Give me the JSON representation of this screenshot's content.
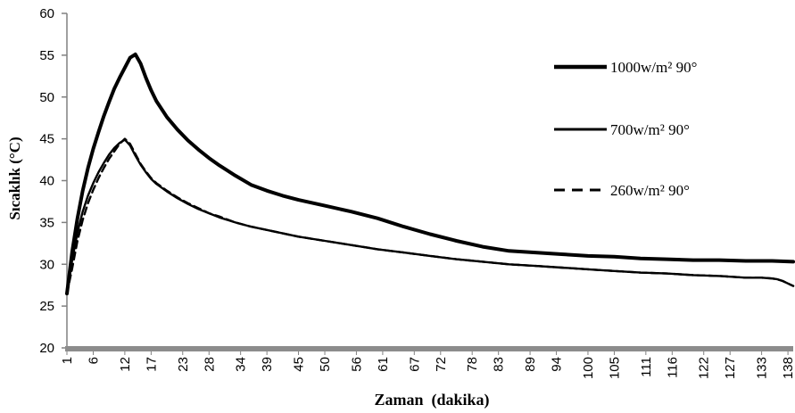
{
  "chart_data": {
    "type": "line",
    "title": "",
    "xlabel": "Zaman  (dakika)",
    "ylabel": "Sıcaklık (°C)",
    "xlim": [
      1,
      139
    ],
    "ylim": [
      20,
      60
    ],
    "yticks": [
      20,
      25,
      30,
      35,
      40,
      45,
      50,
      55,
      60
    ],
    "xticks": [
      1,
      6,
      12,
      17,
      23,
      28,
      34,
      39,
      45,
      50,
      56,
      61,
      67,
      72,
      78,
      83,
      89,
      94,
      100,
      105,
      111,
      116,
      122,
      127,
      133,
      138
    ],
    "grid": false,
    "legend_position": "right",
    "series": [
      {
        "name": "1000w/m² 90°",
        "style": "thick",
        "x": [
          1,
          2,
          3,
          4,
          5,
          6,
          7,
          8,
          9,
          10,
          11,
          12,
          13,
          14,
          15,
          16,
          17,
          18,
          20,
          22,
          24,
          26,
          28,
          30,
          33,
          36,
          39,
          42,
          45,
          50,
          55,
          60,
          65,
          70,
          75,
          80,
          85,
          90,
          95,
          100,
          105,
          110,
          115,
          120,
          125,
          130,
          135,
          139
        ],
        "y": [
          26.5,
          31.5,
          35.5,
          38.8,
          41.5,
          43.8,
          45.8,
          47.7,
          49.4,
          51.0,
          52.3,
          53.5,
          54.7,
          55.1,
          54.0,
          52.3,
          50.8,
          49.5,
          47.6,
          46.1,
          44.8,
          43.7,
          42.7,
          41.8,
          40.6,
          39.5,
          38.8,
          38.2,
          37.7,
          37.0,
          36.3,
          35.5,
          34.5,
          33.6,
          32.8,
          32.1,
          31.6,
          31.4,
          31.2,
          31.0,
          30.9,
          30.7,
          30.6,
          30.5,
          30.5,
          30.4,
          30.4,
          30.3
        ]
      },
      {
        "name": "700w/m² 90°",
        "style": "solid",
        "x": [
          1,
          2,
          3,
          4,
          5,
          6,
          7,
          8,
          9,
          10,
          11,
          12,
          13,
          14,
          15,
          16,
          17,
          18,
          20,
          22,
          24,
          26,
          28,
          30,
          33,
          36,
          39,
          42,
          45,
          50,
          55,
          60,
          65,
          70,
          75,
          80,
          85,
          90,
          95,
          100,
          105,
          110,
          115,
          120,
          125,
          130,
          133,
          135,
          136,
          137,
          138,
          139
        ],
        "y": [
          26.5,
          30.5,
          33.8,
          36.3,
          38.2,
          39.7,
          41.0,
          42.1,
          43.1,
          43.9,
          44.5,
          44.9,
          44.2,
          43.0,
          41.9,
          41.0,
          40.2,
          39.6,
          38.7,
          37.9,
          37.2,
          36.6,
          36.1,
          35.6,
          35.0,
          34.5,
          34.1,
          33.7,
          33.3,
          32.8,
          32.3,
          31.8,
          31.4,
          31.0,
          30.6,
          30.3,
          30.0,
          29.8,
          29.6,
          29.4,
          29.2,
          29.0,
          28.9,
          28.7,
          28.6,
          28.4,
          28.4,
          28.3,
          28.2,
          28.0,
          27.7,
          27.4
        ]
      },
      {
        "name": "260w/m² 90°",
        "style": "dashed",
        "x": [
          1,
          2,
          3,
          4,
          5,
          6,
          7,
          8,
          9,
          10,
          11,
          12,
          13,
          14,
          15,
          16,
          17,
          18,
          20,
          22,
          24,
          26,
          28,
          30,
          33,
          36,
          39,
          42,
          45,
          50,
          55,
          60,
          65,
          70,
          75,
          80,
          85,
          90,
          95,
          100,
          105,
          110,
          115,
          120,
          125,
          130,
          133,
          135,
          136,
          137,
          138,
          139
        ],
        "y": [
          26.5,
          29.5,
          32.8,
          35.3,
          37.3,
          38.9,
          40.3,
          41.5,
          42.6,
          43.5,
          44.4,
          45.0,
          44.4,
          43.2,
          42.0,
          41.1,
          40.3,
          39.7,
          38.8,
          38.0,
          37.3,
          36.7,
          36.1,
          35.7,
          35.0,
          34.5,
          34.1,
          33.7,
          33.3,
          32.8,
          32.3,
          31.8,
          31.4,
          31.0,
          30.6,
          30.3,
          30.0,
          29.8,
          29.6,
          29.4,
          29.2,
          29.0,
          28.9,
          28.7,
          28.6,
          28.4,
          28.4,
          28.3,
          28.2,
          28.0,
          27.7,
          27.4
        ]
      }
    ]
  }
}
